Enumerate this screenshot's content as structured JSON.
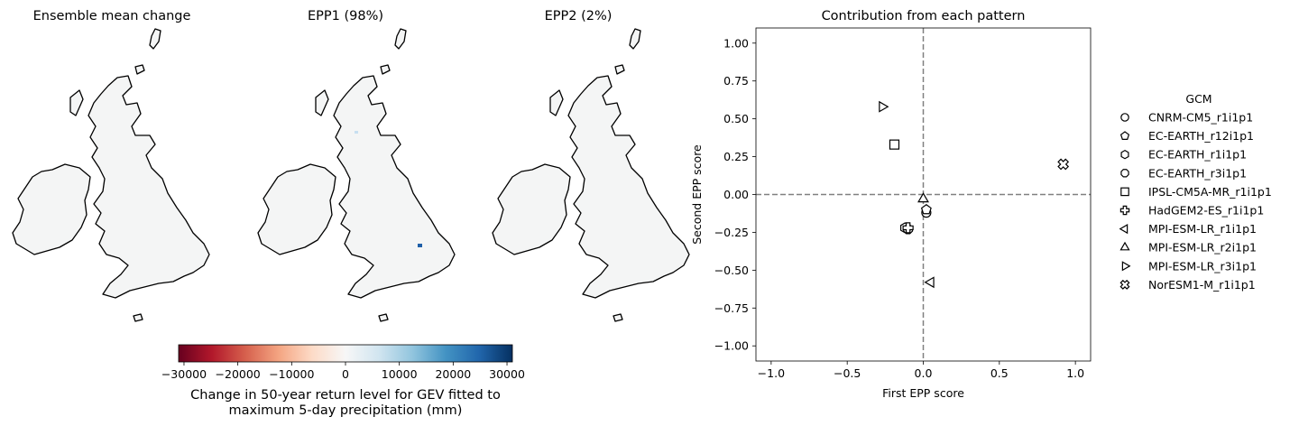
{
  "maps": [
    {
      "title": "Ensemble mean change"
    },
    {
      "title": "EPP1 (98%)"
    },
    {
      "title": "EPP2 (2%)"
    }
  ],
  "colorbar": {
    "ticks": [
      "−30000",
      "−20000",
      "−10000",
      "0",
      "10000",
      "20000",
      "30000"
    ],
    "label_line1": "Change in 50-year return level for GEV fitted to",
    "label_line2": "maximum 5-day precipitation (mm)",
    "colors": [
      "#67001f",
      "#b2182b",
      "#d6604d",
      "#f4a582",
      "#fddbc7",
      "#f7f7f7",
      "#d1e5f0",
      "#92c5de",
      "#4393c3",
      "#2166ac",
      "#053061"
    ]
  },
  "chart_data": {
    "type": "scatter",
    "title": "Contribution from each pattern",
    "xlabel": "First EPP score",
    "ylabel": "Second EPP score",
    "xlim": [
      -1.1,
      1.1
    ],
    "ylim": [
      -1.1,
      1.1
    ],
    "xticks": [
      {
        "v": -1.0,
        "label": "−1.0"
      },
      {
        "v": -0.5,
        "label": "−0.5"
      },
      {
        "v": 0.0,
        "label": "0.0"
      },
      {
        "v": 0.5,
        "label": "0.5"
      },
      {
        "v": 1.0,
        "label": "1.0"
      }
    ],
    "yticks": [
      {
        "v": 1.0,
        "label": "1.00"
      },
      {
        "v": 0.75,
        "label": "0.75"
      },
      {
        "v": 0.5,
        "label": "0.50"
      },
      {
        "v": 0.25,
        "label": "0.25"
      },
      {
        "v": 0.0,
        "label": "0.00"
      },
      {
        "v": -0.25,
        "label": "−0.25"
      },
      {
        "v": -0.5,
        "label": "−0.50"
      },
      {
        "v": -0.75,
        "label": "−0.75"
      },
      {
        "v": -1.0,
        "label": "−1.00"
      }
    ],
    "reference_lines": {
      "x": 0,
      "y": 0,
      "style": "dashed",
      "color": "#808080"
    },
    "grid": false,
    "legend_title": "GCM",
    "legend_position": "outside right",
    "series": [
      {
        "name": "CNRM-CM5_r1i1p1",
        "marker": "circle",
        "x": 0.02,
        "y": -0.12
      },
      {
        "name": "EC-EARTH_r12i1p1",
        "marker": "pentagon",
        "x": 0.02,
        "y": -0.1
      },
      {
        "name": "EC-EARTH_r1i1p1",
        "marker": "hexagon",
        "x": -0.12,
        "y": -0.22
      },
      {
        "name": "EC-EARTH_r3i1p1",
        "marker": "octagon",
        "x": -0.1,
        "y": -0.23
      },
      {
        "name": "IPSL-CM5A-MR_r1i1p1",
        "marker": "square",
        "x": -0.19,
        "y": 0.33
      },
      {
        "name": "HadGEM2-ES_r1i1p1",
        "marker": "plus",
        "x": -0.1,
        "y": -0.22
      },
      {
        "name": "MPI-ESM-LR_r1i1p1",
        "marker": "triangle-left",
        "x": 0.05,
        "y": -0.58
      },
      {
        "name": "MPI-ESM-LR_r2i1p1",
        "marker": "triangle-up",
        "x": 0.0,
        "y": -0.03
      },
      {
        "name": "MPI-ESM-LR_r3i1p1",
        "marker": "triangle-right",
        "x": -0.27,
        "y": 0.58
      },
      {
        "name": "NorESM1-M_r1i1p1",
        "marker": "x-filled",
        "x": 0.92,
        "y": 0.2
      }
    ]
  }
}
